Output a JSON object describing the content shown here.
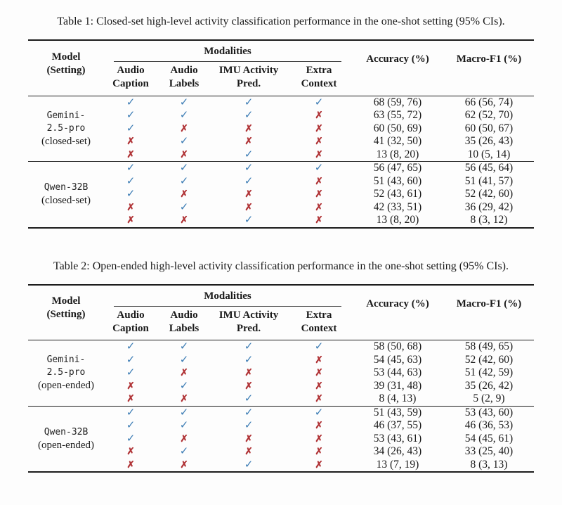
{
  "colors": {
    "check": "#3c7cb4",
    "cross": "#b03336"
  },
  "symbols": {
    "check": "✓",
    "cross": "✗"
  },
  "header": {
    "model_line1": "Model",
    "model_line2": "(Setting)",
    "modalities": "Modalities",
    "col1_line1": "Audio",
    "col1_line2": "Caption",
    "col2_line1": "Audio",
    "col2_line2": "Labels",
    "col3_line1": "IMU Activity",
    "col3_line2": "Pred.",
    "col4_line1": "Extra",
    "col4_line2": "Context",
    "accuracy": "Accuracy (%)",
    "macro_f1": "Macro-F1 (%)"
  },
  "tables": [
    {
      "caption": "Table 1: Closed-set high-level activity classification performance in the one-shot setting (95% CIs).",
      "groups": [
        {
          "model_lines": [
            "Gemini-",
            "2.5-pro"
          ],
          "setting": "(closed-set)",
          "rows": [
            {
              "marks": [
                1,
                1,
                1,
                1
              ],
              "acc": "68 (59, 76)",
              "f1": "66 (56, 74)"
            },
            {
              "marks": [
                1,
                1,
                1,
                0
              ],
              "acc": "63 (55, 72)",
              "f1": "62 (52, 70)"
            },
            {
              "marks": [
                1,
                0,
                0,
                0
              ],
              "acc": "60 (50, 69)",
              "f1": "60 (50, 67)"
            },
            {
              "marks": [
                0,
                1,
                0,
                0
              ],
              "acc": "41 (32, 50)",
              "f1": "35 (26, 43)"
            },
            {
              "marks": [
                0,
                0,
                1,
                0
              ],
              "acc": "13 (8, 20)",
              "f1": "10 (5, 14)"
            }
          ]
        },
        {
          "model_lines": [
            "Qwen-32B"
          ],
          "setting": "(closed-set)",
          "rows": [
            {
              "marks": [
                1,
                1,
                1,
                1
              ],
              "acc": "56 (47, 65)",
              "f1": "56 (45, 64)"
            },
            {
              "marks": [
                1,
                1,
                1,
                0
              ],
              "acc": "51 (43, 60)",
              "f1": "51 (41, 57)"
            },
            {
              "marks": [
                1,
                0,
                0,
                0
              ],
              "acc": "52 (43, 61)",
              "f1": "52 (42, 60)"
            },
            {
              "marks": [
                0,
                1,
                0,
                0
              ],
              "acc": "42 (33, 51)",
              "f1": "36 (29, 42)"
            },
            {
              "marks": [
                0,
                0,
                1,
                0
              ],
              "acc": "13 (8, 20)",
              "f1": "8 (3, 12)"
            }
          ]
        }
      ]
    },
    {
      "caption": "Table 2: Open-ended high-level activity classification performance in the one-shot setting (95% CIs).",
      "groups": [
        {
          "model_lines": [
            "Gemini-",
            "2.5-pro"
          ],
          "setting": "(open-ended)",
          "rows": [
            {
              "marks": [
                1,
                1,
                1,
                1
              ],
              "acc": "58 (50, 68)",
              "f1": "58 (49, 65)"
            },
            {
              "marks": [
                1,
                1,
                1,
                0
              ],
              "acc": "54 (45, 63)",
              "f1": "52 (42, 60)"
            },
            {
              "marks": [
                1,
                0,
                0,
                0
              ],
              "acc": "53 (44, 63)",
              "f1": "51 (42, 59)"
            },
            {
              "marks": [
                0,
                1,
                0,
                0
              ],
              "acc": "39 (31, 48)",
              "f1": "35 (26, 42)"
            },
            {
              "marks": [
                0,
                0,
                1,
                0
              ],
              "acc": "8 (4, 13)",
              "f1": "5 (2, 9)"
            }
          ]
        },
        {
          "model_lines": [
            "Qwen-32B"
          ],
          "setting": "(open-ended)",
          "rows": [
            {
              "marks": [
                1,
                1,
                1,
                1
              ],
              "acc": "51 (43, 59)",
              "f1": "53 (43, 60)"
            },
            {
              "marks": [
                1,
                1,
                1,
                0
              ],
              "acc": "46 (37, 55)",
              "f1": "46 (36, 53)"
            },
            {
              "marks": [
                1,
                0,
                0,
                0
              ],
              "acc": "53 (43, 61)",
              "f1": "54 (45, 61)"
            },
            {
              "marks": [
                0,
                1,
                0,
                0
              ],
              "acc": "34 (26, 43)",
              "f1": "33 (25, 40)"
            },
            {
              "marks": [
                0,
                0,
                1,
                0
              ],
              "acc": "13 (7, 19)",
              "f1": "8 (3, 13)"
            }
          ]
        }
      ]
    }
  ]
}
